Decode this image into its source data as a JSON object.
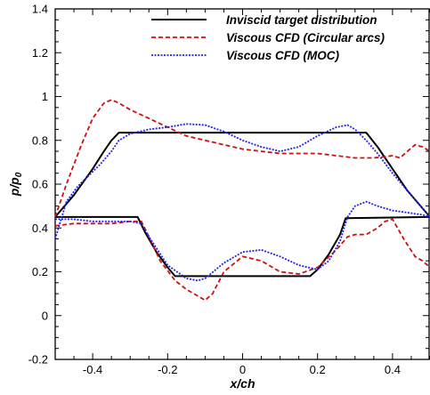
{
  "chart_data": {
    "type": "line",
    "xlabel": "x/ch",
    "ylabel_main": "p/p",
    "ylabel_sub": "0",
    "xlim": [
      -0.5,
      0.5
    ],
    "ylim": [
      -0.2,
      1.4
    ],
    "xticks": [
      -0.4,
      -0.2,
      0,
      0.2,
      0.4
    ],
    "xtick_labels": [
      "-0.4",
      "-0.2",
      "0",
      "0.2",
      "0.4"
    ],
    "yticks": [
      -0.2,
      0,
      0.2,
      0.4,
      0.6,
      0.8,
      1,
      1.2,
      1.4
    ],
    "ytick_labels": [
      "-0.2",
      "0",
      "0.2",
      "0.4",
      "0.6",
      "0.8",
      "1",
      "1.2",
      "1.4"
    ],
    "grid": false,
    "legend_position": "top-right",
    "series": [
      {
        "name": "Inviscid target distribution",
        "color": "#000000",
        "dash": "solid",
        "segments": [
          {
            "x": [
              -0.5,
              -0.45,
              -0.4,
              -0.37,
              -0.35,
              -0.33,
              0.33,
              0.36,
              0.4,
              0.44,
              0.48,
              0.5
            ],
            "y": [
              0.45,
              0.55,
              0.67,
              0.75,
              0.8,
              0.835,
              0.835,
              0.77,
              0.67,
              0.57,
              0.49,
              0.45
            ]
          },
          {
            "x": [
              -0.5,
              -0.28,
              -0.26,
              -0.23,
              -0.2,
              -0.18,
              0.18,
              0.2,
              0.23,
              0.26,
              0.275,
              0.5
            ],
            "y": [
              0.45,
              0.45,
              0.38,
              0.29,
              0.22,
              0.18,
              0.18,
              0.21,
              0.28,
              0.37,
              0.445,
              0.45
            ]
          }
        ]
      },
      {
        "name": "Viscous CFD (Circular arcs)",
        "color": "#cc1111",
        "dash": "dashed",
        "segments": [
          {
            "x": [
              -0.5,
              -0.47,
              -0.43,
              -0.4,
              -0.37,
              -0.35,
              -0.33,
              -0.3,
              -0.25,
              -0.2,
              -0.15,
              -0.1,
              -0.05,
              0,
              0.05,
              0.1,
              0.15,
              0.2,
              0.25,
              0.3,
              0.35,
              0.4,
              0.42,
              0.44,
              0.46,
              0.48,
              0.5
            ],
            "y": [
              0.45,
              0.6,
              0.78,
              0.9,
              0.97,
              0.985,
              0.97,
              0.94,
              0.9,
              0.86,
              0.82,
              0.8,
              0.78,
              0.76,
              0.75,
              0.74,
              0.74,
              0.74,
              0.73,
              0.72,
              0.72,
              0.73,
              0.72,
              0.75,
              0.78,
              0.77,
              0.75
            ]
          },
          {
            "x": [
              -0.5,
              -0.45,
              -0.4,
              -0.35,
              -0.3,
              -0.27,
              -0.25,
              -0.22,
              -0.18,
              -0.15,
              -0.12,
              -0.1,
              -0.08,
              -0.05,
              0,
              0.05,
              0.1,
              0.15,
              0.2,
              0.25,
              0.28,
              0.3,
              0.33,
              0.36,
              0.38,
              0.4,
              0.43,
              0.46,
              0.48,
              0.5
            ],
            "y": [
              0.41,
              0.42,
              0.42,
              0.42,
              0.43,
              0.43,
              0.36,
              0.25,
              0.16,
              0.12,
              0.09,
              0.07,
              0.1,
              0.2,
              0.27,
              0.25,
              0.2,
              0.19,
              0.22,
              0.3,
              0.36,
              0.37,
              0.37,
              0.4,
              0.43,
              0.44,
              0.35,
              0.27,
              0.25,
              0.22
            ]
          }
        ]
      },
      {
        "name": "Viscous CFD (MOC)",
        "color": "#2222ee",
        "dash": "dotted",
        "segments": [
          {
            "x": [
              -0.5,
              -0.47,
              -0.44,
              -0.41,
              -0.38,
              -0.35,
              -0.33,
              -0.3,
              -0.25,
              -0.2,
              -0.15,
              -0.1,
              -0.05,
              0,
              0.05,
              0.1,
              0.15,
              0.2,
              0.25,
              0.28,
              0.3,
              0.33,
              0.36,
              0.4,
              0.44,
              0.48,
              0.5
            ],
            "y": [
              0.35,
              0.52,
              0.59,
              0.64,
              0.69,
              0.75,
              0.8,
              0.83,
              0.85,
              0.86,
              0.875,
              0.87,
              0.84,
              0.8,
              0.77,
              0.75,
              0.77,
              0.82,
              0.86,
              0.87,
              0.85,
              0.8,
              0.74,
              0.65,
              0.57,
              0.49,
              0.45
            ]
          },
          {
            "x": [
              -0.5,
              -0.45,
              -0.4,
              -0.35,
              -0.3,
              -0.27,
              -0.25,
              -0.2,
              -0.15,
              -0.12,
              -0.1,
              -0.05,
              0,
              0.05,
              0.1,
              0.15,
              0.2,
              0.23,
              0.26,
              0.28,
              0.3,
              0.33,
              0.36,
              0.4,
              0.44,
              0.48,
              0.5
            ],
            "y": [
              0.44,
              0.44,
              0.43,
              0.43,
              0.43,
              0.42,
              0.36,
              0.23,
              0.17,
              0.16,
              0.17,
              0.24,
              0.29,
              0.3,
              0.27,
              0.23,
              0.21,
              0.25,
              0.34,
              0.45,
              0.5,
              0.52,
              0.5,
              0.48,
              0.47,
              0.46,
              0.45
            ]
          }
        ]
      }
    ]
  }
}
